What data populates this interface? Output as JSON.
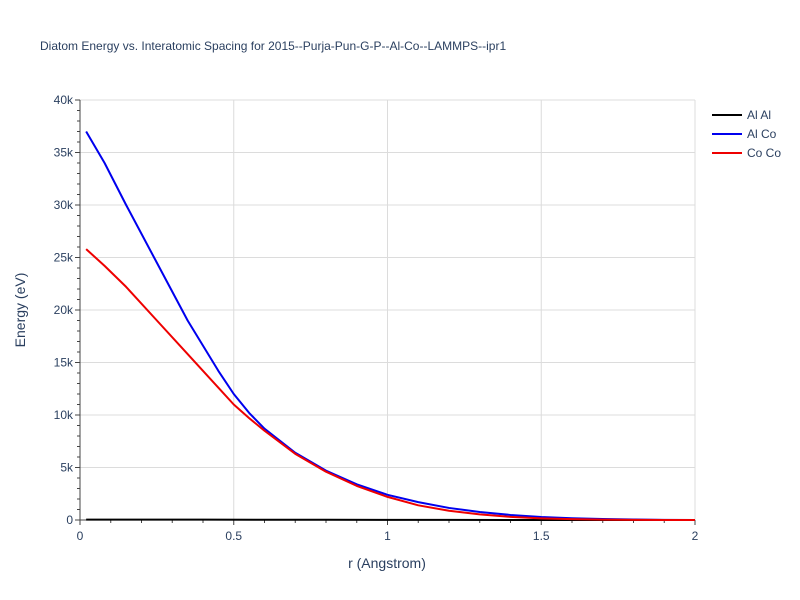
{
  "chart_data": {
    "type": "line",
    "title": "Diatom Energy vs. Interatomic Spacing for 2015--Purja-Pun-G-P--Al-Co--LAMMPS--ipr1",
    "xlabel": "r (Angstrom)",
    "ylabel": "Energy (eV)",
    "xlim": [
      0,
      2
    ],
    "ylim": [
      0,
      40000
    ],
    "x_ticks": [
      0,
      0.5,
      1,
      1.5,
      2
    ],
    "x_tick_labels": [
      "0",
      "0.5",
      "1",
      "1.5",
      "2"
    ],
    "y_ticks": [
      0,
      5000,
      10000,
      15000,
      20000,
      25000,
      30000,
      35000,
      40000
    ],
    "y_tick_labels": [
      "0",
      "5k",
      "10k",
      "15k",
      "20k",
      "25k",
      "30k",
      "35k",
      "40k"
    ],
    "grid": true,
    "legend_position": "top-right",
    "series": [
      {
        "name": "Al Al",
        "color": "#000000",
        "x": [
          0.02,
          0.2,
          0.4,
          0.6,
          0.8,
          1.0,
          1.2,
          1.4,
          1.6,
          1.8,
          2.0
        ],
        "y": [
          40,
          35,
          30,
          25,
          20,
          15,
          10,
          5,
          2,
          1,
          0
        ]
      },
      {
        "name": "Al Co",
        "color": "#0000ee",
        "x": [
          0.02,
          0.08,
          0.15,
          0.25,
          0.35,
          0.45,
          0.5,
          0.55,
          0.6,
          0.7,
          0.8,
          0.9,
          1.0,
          1.1,
          1.2,
          1.3,
          1.4,
          1.5,
          1.6,
          1.7,
          1.8,
          1.9,
          2.0
        ],
        "y": [
          37000,
          34000,
          30000,
          24500,
          19000,
          14200,
          12000,
          10200,
          8700,
          6400,
          4700,
          3400,
          2400,
          1700,
          1150,
          760,
          480,
          290,
          170,
          90,
          45,
          15,
          0
        ]
      },
      {
        "name": "Co Co",
        "color": "#ee0000",
        "x": [
          0.02,
          0.08,
          0.15,
          0.25,
          0.35,
          0.45,
          0.5,
          0.55,
          0.6,
          0.7,
          0.8,
          0.9,
          1.0,
          1.1,
          1.2,
          1.3,
          1.4,
          1.5,
          1.6,
          1.7,
          1.8,
          1.9,
          2.0
        ],
        "y": [
          25800,
          24200,
          22200,
          19000,
          15800,
          12600,
          11000,
          9700,
          8500,
          6300,
          4600,
          3250,
          2200,
          1400,
          880,
          530,
          300,
          160,
          80,
          35,
          12,
          3,
          0
        ]
      }
    ]
  }
}
